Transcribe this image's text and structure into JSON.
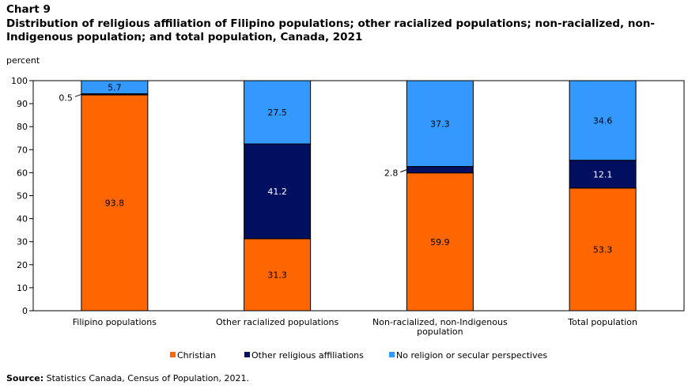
{
  "header": {
    "chart_label": "Chart 9",
    "title": "Distribution of religious affiliation of Filipino populations; other racialized populations; non-racialized, non-Indigenous population; and total population, Canada, 2021"
  },
  "unit_label": "percent",
  "source": {
    "label": "Source:",
    "text": "Statistics Canada, Census of Population, 2021."
  },
  "colors": {
    "Christian": "#ff6600",
    "Other religious affiliations": "#000f5f",
    "No religion or secular perspectives": "#3399ff"
  },
  "chart_data": {
    "type": "bar",
    "stacked": true,
    "categories": [
      "Filipino populations",
      "Other racialized populations",
      "Non-racialized, non-Indigenous population",
      "Total population"
    ],
    "series": [
      {
        "name": "Christian",
        "values": [
          93.8,
          31.3,
          59.9,
          53.3
        ]
      },
      {
        "name": "Other religious affiliations",
        "values": [
          0.5,
          41.2,
          2.8,
          12.1
        ]
      },
      {
        "name": "No religion or secular perspectives",
        "values": [
          5.7,
          27.5,
          37.3,
          34.6
        ]
      }
    ],
    "data_labels": [
      [
        "93.8",
        "31.3",
        "59.9",
        "53.3"
      ],
      [
        "0.5",
        "41.2",
        "2.8",
        "12.1"
      ],
      [
        "5.7",
        "27.5",
        "37.3",
        "34.6"
      ]
    ],
    "yticks": [
      0,
      10,
      20,
      30,
      40,
      50,
      60,
      70,
      80,
      90,
      100
    ],
    "ylim": [
      0,
      100
    ],
    "ylabel": "percent",
    "xlabel": "",
    "grid": false,
    "legend_position": "bottom"
  }
}
